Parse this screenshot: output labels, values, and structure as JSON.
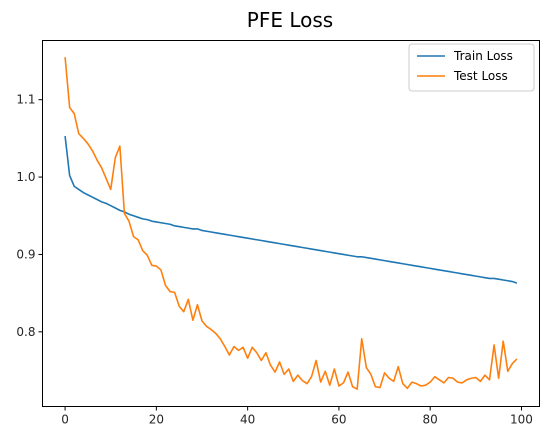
{
  "chart_data": {
    "type": "line",
    "title": "PFE Loss",
    "xlabel": "",
    "ylabel": "",
    "xlim": [
      -4.95,
      103.95
    ],
    "ylim": [
      0.7035,
      1.1765
    ],
    "xticks": [
      0,
      20,
      40,
      60,
      80,
      100
    ],
    "yticks": [
      0.8,
      0.9,
      1.0,
      1.1
    ],
    "xtick_labels": [
      "0",
      "20",
      "40",
      "60",
      "80",
      "100"
    ],
    "ytick_labels": [
      "0.8",
      "0.9",
      "1.0",
      "1.1"
    ],
    "grid": false,
    "legend_position": "top-right",
    "series": [
      {
        "name": "Train Loss",
        "color": "#1f77b4",
        "x": [
          0,
          1,
          2,
          3,
          4,
          5,
          6,
          7,
          8,
          9,
          10,
          11,
          12,
          13,
          14,
          15,
          16,
          17,
          18,
          19,
          20,
          21,
          22,
          23,
          24,
          25,
          26,
          27,
          28,
          29,
          30,
          31,
          32,
          33,
          34,
          35,
          36,
          37,
          38,
          39,
          40,
          41,
          42,
          43,
          44,
          45,
          46,
          47,
          48,
          49,
          50,
          51,
          52,
          53,
          54,
          55,
          56,
          57,
          58,
          59,
          60,
          61,
          62,
          63,
          64,
          65,
          66,
          67,
          68,
          69,
          70,
          71,
          72,
          73,
          74,
          75,
          76,
          77,
          78,
          79,
          80,
          81,
          82,
          83,
          84,
          85,
          86,
          87,
          88,
          89,
          90,
          91,
          92,
          93,
          94,
          95,
          96,
          97,
          98,
          99
        ],
        "values": [
          1.053,
          1.002,
          0.988,
          0.984,
          0.98,
          0.977,
          0.974,
          0.971,
          0.968,
          0.966,
          0.963,
          0.96,
          0.957,
          0.955,
          0.952,
          0.95,
          0.948,
          0.946,
          0.945,
          0.943,
          0.942,
          0.941,
          0.94,
          0.939,
          0.937,
          0.936,
          0.935,
          0.934,
          0.933,
          0.933,
          0.931,
          0.93,
          0.929,
          0.928,
          0.927,
          0.926,
          0.925,
          0.924,
          0.923,
          0.922,
          0.921,
          0.92,
          0.919,
          0.918,
          0.917,
          0.916,
          0.915,
          0.914,
          0.913,
          0.912,
          0.911,
          0.91,
          0.909,
          0.908,
          0.907,
          0.906,
          0.905,
          0.904,
          0.903,
          0.902,
          0.901,
          0.9,
          0.899,
          0.898,
          0.897,
          0.897,
          0.896,
          0.895,
          0.894,
          0.893,
          0.892,
          0.891,
          0.89,
          0.889,
          0.888,
          0.887,
          0.886,
          0.885,
          0.884,
          0.883,
          0.882,
          0.881,
          0.88,
          0.879,
          0.878,
          0.877,
          0.876,
          0.875,
          0.874,
          0.873,
          0.872,
          0.871,
          0.87,
          0.869,
          0.869,
          0.868,
          0.867,
          0.866,
          0.865,
          0.863
        ]
      },
      {
        "name": "Test Loss",
        "color": "#ff7f0e",
        "x": [
          0,
          1,
          2,
          3,
          4,
          5,
          6,
          7,
          8,
          9,
          10,
          11,
          12,
          13,
          14,
          15,
          16,
          17,
          18,
          19,
          20,
          21,
          22,
          23,
          24,
          25,
          26,
          27,
          28,
          29,
          30,
          31,
          32,
          33,
          34,
          35,
          36,
          37,
          38,
          39,
          40,
          41,
          42,
          43,
          44,
          45,
          46,
          47,
          48,
          49,
          50,
          51,
          52,
          53,
          54,
          55,
          56,
          57,
          58,
          59,
          60,
          61,
          62,
          63,
          64,
          65,
          66,
          67,
          68,
          69,
          70,
          71,
          72,
          73,
          74,
          75,
          76,
          77,
          78,
          79,
          80,
          81,
          82,
          83,
          84,
          85,
          86,
          87,
          88,
          89,
          90,
          91,
          92,
          93,
          94,
          95,
          96,
          97,
          98,
          99
        ],
        "values": [
          1.155,
          1.09,
          1.082,
          1.056,
          1.05,
          1.043,
          1.034,
          1.022,
          1.012,
          0.998,
          0.984,
          1.025,
          1.04,
          0.953,
          0.943,
          0.923,
          0.919,
          0.905,
          0.899,
          0.886,
          0.885,
          0.88,
          0.86,
          0.852,
          0.851,
          0.833,
          0.826,
          0.842,
          0.815,
          0.835,
          0.814,
          0.807,
          0.803,
          0.798,
          0.791,
          0.781,
          0.77,
          0.781,
          0.776,
          0.78,
          0.766,
          0.78,
          0.773,
          0.763,
          0.773,
          0.757,
          0.748,
          0.761,
          0.745,
          0.752,
          0.736,
          0.744,
          0.737,
          0.733,
          0.742,
          0.763,
          0.735,
          0.749,
          0.731,
          0.752,
          0.73,
          0.734,
          0.748,
          0.729,
          0.726,
          0.791,
          0.754,
          0.745,
          0.729,
          0.728,
          0.747,
          0.74,
          0.736,
          0.755,
          0.733,
          0.727,
          0.735,
          0.733,
          0.73,
          0.731,
          0.735,
          0.742,
          0.738,
          0.734,
          0.741,
          0.74,
          0.735,
          0.734,
          0.738,
          0.74,
          0.741,
          0.736,
          0.744,
          0.738,
          0.783,
          0.74,
          0.788,
          0.749,
          0.759,
          0.765
        ]
      }
    ]
  }
}
